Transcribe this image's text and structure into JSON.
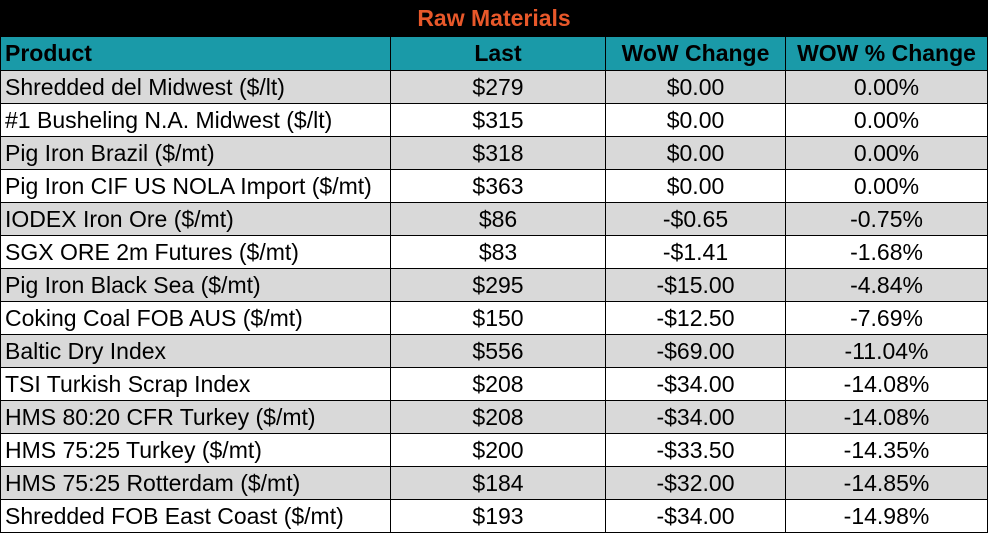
{
  "title": "Raw Materials",
  "columns": {
    "product": "Product",
    "last": "Last",
    "wow_change": "WoW Change",
    "wow_pct": "WOW % Change"
  },
  "rows": [
    {
      "product": "Shredded del  Midwest ($/lt)",
      "last": "$279",
      "wow_change": "$0.00",
      "wow_pct": "0.00%"
    },
    {
      "product": "#1 Busheling N.A. Midwest ($/lt)",
      "last": "$315",
      "wow_change": "$0.00",
      "wow_pct": "0.00%"
    },
    {
      "product": "Pig Iron Brazil ($/mt)",
      "last": "$318",
      "wow_change": "$0.00",
      "wow_pct": "0.00%"
    },
    {
      "product": "Pig Iron CIF US NOLA Import ($/mt)",
      "last": "$363",
      "wow_change": "$0.00",
      "wow_pct": "0.00%"
    },
    {
      "product": "IODEX  Iron Ore ($/mt)",
      "last": "$86",
      "wow_change": "-$0.65",
      "wow_pct": "-0.75%"
    },
    {
      "product": "SGX ORE 2m Futures ($/mt)",
      "last": "$83",
      "wow_change": "-$1.41",
      "wow_pct": "-1.68%"
    },
    {
      "product": "Pig Iron Black Sea ($/mt)",
      "last": "$295",
      "wow_change": "-$15.00",
      "wow_pct": "-4.84%"
    },
    {
      "product": "Coking Coal FOB AUS ($/mt)",
      "last": "$150",
      "wow_change": "-$12.50",
      "wow_pct": "-7.69%"
    },
    {
      "product": "Baltic Dry Index",
      "last": "$556",
      "wow_change": "-$69.00",
      "wow_pct": "-11.04%"
    },
    {
      "product": "TSI Turkish Scrap Index",
      "last": "$208",
      "wow_change": "-$34.00",
      "wow_pct": "-14.08%"
    },
    {
      "product": "HMS 80:20 CFR Turkey ($/mt)",
      "last": "$208",
      "wow_change": "-$34.00",
      "wow_pct": "-14.08%"
    },
    {
      "product": "HMS 75:25 Turkey ($/mt)",
      "last": "$200",
      "wow_change": "-$33.50",
      "wow_pct": "-14.35%"
    },
    {
      "product": "HMS 75:25 Rotterdam ($/mt)",
      "last": "$184",
      "wow_change": "-$32.00",
      "wow_pct": "-14.85%"
    },
    {
      "product": "Shredded FOB East Coast ($/mt)",
      "last": "$193",
      "wow_change": "-$34.00",
      "wow_pct": "-14.98%"
    }
  ],
  "colors": {
    "title_bg": "#000000",
    "title_text": "#e8582a",
    "header_bg": "#1a9aa8",
    "row_shade": "#d9d9d9"
  }
}
